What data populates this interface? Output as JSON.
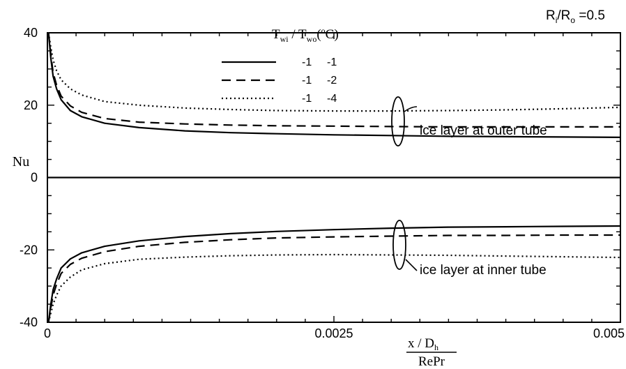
{
  "chart_data": {
    "type": "line",
    "corner_label": {
      "base": "R",
      "sub1": "i",
      "mid": "/R",
      "sub2": "o",
      "tail": " =0.5"
    },
    "xlabel": {
      "numerator": "x / D",
      "numerator_sub": "h",
      "denominator": "RePr"
    },
    "ylabel": "Nu",
    "xlim": [
      0,
      0.005
    ],
    "ylim": [
      -40,
      40
    ],
    "x_ticks": [
      0,
      0.0025,
      0.005
    ],
    "x_tick_labels": [
      "0",
      "0.0025",
      "0.005"
    ],
    "x_minor_step": 0.00025,
    "y_ticks": [
      -40,
      -20,
      0,
      20,
      40
    ],
    "y_tick_labels": [
      "-40",
      "-20",
      "0",
      "20",
      "40"
    ],
    "y_minor_step": 5,
    "grid": false,
    "legend": {
      "position": "top-center",
      "header": {
        "t1": "T",
        "s1": "wi",
        "mid": " / T",
        "s2": "wo",
        "unit_open": "(",
        "deg": "o",
        "unit_close": "C)"
      },
      "rows": [
        {
          "a": "-1",
          "b": "-1",
          "dash": "solid"
        },
        {
          "a": "-1",
          "b": "-2",
          "dash": "dashed"
        },
        {
          "a": "-1",
          "b": "-4",
          "dash": "dotted"
        }
      ]
    },
    "annotations": [
      {
        "text": "ice layer at outer tube",
        "ellipse_x": 0.00323,
        "ellipse_y": 14
      },
      {
        "text": "ice layer at inner tube",
        "ellipse_x": 0.00323,
        "ellipse_y": -17
      }
    ],
    "series": [
      {
        "group": "outer",
        "style": "solid",
        "x": [
          1e-05,
          3e-05,
          5e-05,
          8e-05,
          0.00012,
          0.0002,
          0.0003,
          0.0005,
          0.0008,
          0.0012,
          0.0016,
          0.002,
          0.0025,
          0.003,
          0.0035,
          0.004,
          0.0045,
          0.005
        ],
        "y": [
          40,
          33,
          28,
          24.5,
          21.5,
          18.5,
          16.8,
          15,
          13.8,
          12.9,
          12.4,
          12.1,
          11.8,
          11.6,
          11.4,
          11.3,
          11.2,
          11.1
        ]
      },
      {
        "group": "outer",
        "style": "dashed",
        "x": [
          1e-05,
          3e-05,
          5e-05,
          8e-05,
          0.00012,
          0.0002,
          0.0003,
          0.0005,
          0.0008,
          0.0012,
          0.0016,
          0.002,
          0.0025,
          0.003,
          0.0035,
          0.004,
          0.0045,
          0.005
        ],
        "y": [
          40,
          34,
          29,
          25.5,
          22.5,
          19.8,
          18,
          16.3,
          15.3,
          14.8,
          14.5,
          14.3,
          14.2,
          14.1,
          14,
          14,
          14,
          14
        ]
      },
      {
        "group": "outer",
        "style": "dotted",
        "x": [
          1e-05,
          3e-05,
          5e-05,
          8e-05,
          0.00012,
          0.0002,
          0.0003,
          0.0005,
          0.0008,
          0.0012,
          0.0016,
          0.002,
          0.0025,
          0.003,
          0.0035,
          0.004,
          0.0045,
          0.005
        ],
        "y": [
          40,
          36,
          32.5,
          29.5,
          27,
          24.5,
          22.8,
          21,
          20,
          19.2,
          18.8,
          18.5,
          18.4,
          18.4,
          18.5,
          18.7,
          19,
          19.4
        ]
      },
      {
        "group": "inner",
        "style": "solid",
        "x": [
          1e-05,
          3e-05,
          5e-05,
          8e-05,
          0.00012,
          0.0002,
          0.0003,
          0.0005,
          0.0008,
          0.0012,
          0.0016,
          0.002,
          0.0025,
          0.003,
          0.0035,
          0.004,
          0.0045,
          0.005
        ],
        "y": [
          -40,
          -35,
          -31,
          -28,
          -25,
          -22.5,
          -20.8,
          -19,
          -17.5,
          -16.3,
          -15.5,
          -14.9,
          -14.4,
          -14,
          -13.7,
          -13.6,
          -13.5,
          -13.4
        ]
      },
      {
        "group": "inner",
        "style": "dashed",
        "x": [
          1e-05,
          3e-05,
          5e-05,
          8e-05,
          0.00012,
          0.0002,
          0.0003,
          0.0005,
          0.0008,
          0.0012,
          0.0016,
          0.002,
          0.0025,
          0.003,
          0.0035,
          0.004,
          0.0045,
          0.005
        ],
        "y": [
          -40,
          -36,
          -32.5,
          -29.5,
          -26.5,
          -24,
          -22.3,
          -20.5,
          -19,
          -17.9,
          -17.2,
          -16.7,
          -16.4,
          -16.2,
          -16,
          -16,
          -15.9,
          -15.9
        ]
      },
      {
        "group": "inner",
        "style": "dotted",
        "x": [
          1e-05,
          3e-05,
          5e-05,
          8e-05,
          0.00012,
          0.0002,
          0.0003,
          0.0005,
          0.0008,
          0.0012,
          0.0016,
          0.002,
          0.0025,
          0.003,
          0.0035,
          0.004,
          0.0045,
          0.005
        ],
        "y": [
          -40,
          -37.5,
          -35,
          -32.5,
          -30,
          -27.5,
          -25.5,
          -23.8,
          -22.6,
          -22,
          -21.6,
          -21.4,
          -21.3,
          -21.4,
          -21.5,
          -21.7,
          -21.9,
          -22.1
        ]
      }
    ]
  }
}
